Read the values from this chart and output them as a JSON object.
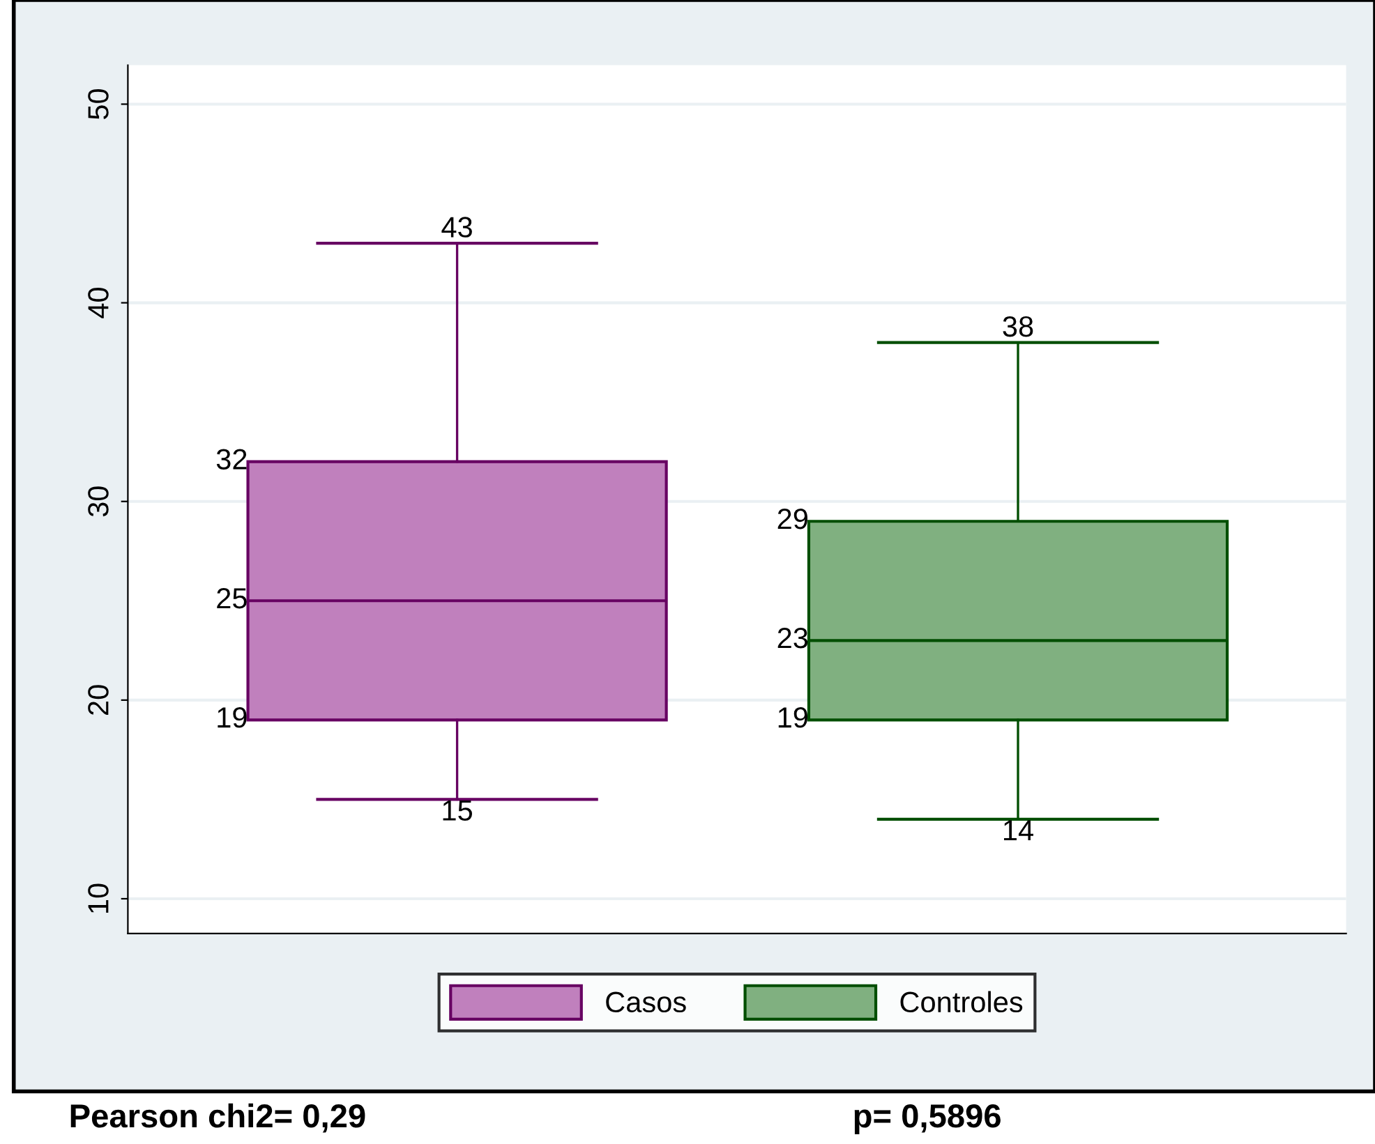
{
  "chart_data": {
    "type": "box",
    "categories": [
      null,
      null
    ],
    "series": [
      {
        "name": "Casos",
        "color": "#c080bd",
        "boxes": [
          {
            "low": 15,
            "q1": 19,
            "median": 25,
            "q3": 32,
            "high": 43
          },
          null
        ]
      },
      {
        "name": "Controles",
        "color": "#80b080",
        "boxes": [
          null,
          {
            "low": 14,
            "q1": 19,
            "median": 23,
            "q3": 29,
            "high": 38
          }
        ]
      }
    ],
    "ylim": [
      8.25,
      51.96
    ],
    "yticks": [
      10,
      20,
      30,
      40,
      50
    ],
    "grid": "y",
    "legend": "bottom",
    "annotations": [
      {
        "text": "15",
        "y": 15
      },
      "19",
      "25",
      "32",
      {
        "text": "43",
        "y": 43
      },
      {
        "text": "14",
        "y": 14
      },
      "19",
      "23",
      "29",
      {
        "text": "38",
        "y": 38
      },
      "Pearson chi2= 0,29",
      "p= 0,5896"
    ]
  }
}
